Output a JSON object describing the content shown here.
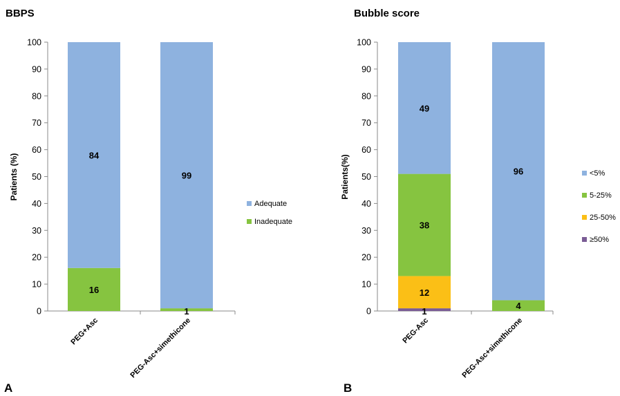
{
  "chart_data": [
    {
      "type": "bar",
      "stacked": true,
      "panel_letter": "A",
      "title": "BBPS",
      "ylabel": "Patients (%)",
      "ylim": [
        0,
        100
      ],
      "yticks": [
        0,
        10,
        20,
        30,
        40,
        50,
        60,
        70,
        80,
        90,
        100
      ],
      "categories": [
        "PEG+Asc",
        "PEG-Asc+simethicone"
      ],
      "series": [
        {
          "name": "Inadequate",
          "color": "#86c440",
          "values": [
            16,
            1
          ],
          "labels": [
            "16",
            "1"
          ]
        },
        {
          "name": "Adequate",
          "color": "#8eb2df",
          "values": [
            84,
            99
          ],
          "labels": [
            "84",
            "99"
          ]
        }
      ],
      "legend_position": "right",
      "grid": false
    },
    {
      "type": "bar",
      "stacked": true,
      "panel_letter": "B",
      "title": "Bubble score",
      "ylabel": "Patients(%)",
      "ylim": [
        0,
        100
      ],
      "yticks": [
        0,
        10,
        20,
        30,
        40,
        50,
        60,
        70,
        80,
        90,
        100
      ],
      "categories": [
        "PEG-Asc",
        "PEG-Asc+simethicone"
      ],
      "series": [
        {
          "name": "≥50%",
          "color": "#7a5c95",
          "values": [
            1,
            0
          ],
          "labels": [
            "1",
            ""
          ]
        },
        {
          "name": "25-50%",
          "color": "#fbbf16",
          "values": [
            12,
            0
          ],
          "labels": [
            "12",
            ""
          ]
        },
        {
          "name": "5-25%",
          "color": "#86c440",
          "values": [
            38,
            4
          ],
          "labels": [
            "38",
            "4"
          ]
        },
        {
          "name": "<5%",
          "color": "#8eb2df",
          "values": [
            49,
            96
          ],
          "labels": [
            "49",
            "96"
          ]
        }
      ],
      "legend_position": "right",
      "grid": false
    }
  ]
}
